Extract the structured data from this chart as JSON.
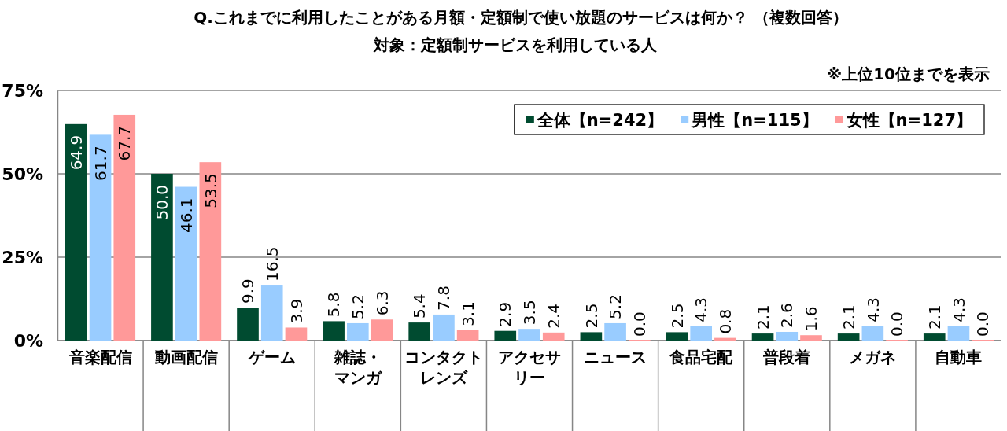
{
  "chart_data": {
    "type": "bar",
    "title": "Q.これまでに利用したことがある月額・定額制で使い放題のサービスは何か？ （複数回答）",
    "subtitle": "対象：定額制サービスを利用している人",
    "annotations": [
      "※上位10位までを表示"
    ],
    "categories": [
      "音楽配信",
      "動画配信",
      "ゲーム",
      "雑誌・マンガ",
      "コンタクトレンズ",
      "アクセサリー",
      "ニュース",
      "食品宅配",
      "普段着",
      "メガネ",
      "自動車"
    ],
    "series": [
      {
        "name": "全体【n=242】",
        "color": "#004b30",
        "values": [
          64.9,
          50.0,
          9.9,
          5.8,
          5.4,
          2.9,
          2.5,
          2.5,
          2.1,
          2.1,
          2.1
        ],
        "value_labels": [
          "64.9",
          "50.0",
          "9.9",
          "5.8",
          "5.4",
          "2.9",
          "2.5",
          "2.5",
          "2.1",
          "2.1",
          "2.1"
        ]
      },
      {
        "name": "男性【n=115】",
        "color": "#99ccff",
        "values": [
          61.7,
          46.1,
          16.5,
          5.2,
          7.8,
          3.5,
          5.2,
          4.3,
          2.6,
          4.3,
          4.3
        ],
        "value_labels": [
          "61.7",
          "46.1",
          "16.5",
          "5.2",
          "7.8",
          "3.5",
          "5.2",
          "4.3",
          "2.6",
          "4.3",
          "4.3"
        ]
      },
      {
        "name": "女性【n=127】",
        "color": "#ff9999",
        "values": [
          67.7,
          53.5,
          3.9,
          6.3,
          3.1,
          2.4,
          0.0,
          0.8,
          1.6,
          0.0,
          0.0
        ],
        "value_labels": [
          "67.7",
          "53.5",
          "3.9",
          "6.3",
          "3.1",
          "2.4",
          "0.0",
          "0.8",
          "1.6",
          "0.0",
          "0.0"
        ]
      }
    ],
    "ylim": [
      0,
      75
    ],
    "yticks": [
      {
        "value": 0,
        "label": "0%"
      },
      {
        "value": 25,
        "label": "25%"
      },
      {
        "value": 50,
        "label": "50%"
      },
      {
        "value": 75,
        "label": "75%"
      }
    ],
    "grid": "y",
    "legend": "top right"
  }
}
